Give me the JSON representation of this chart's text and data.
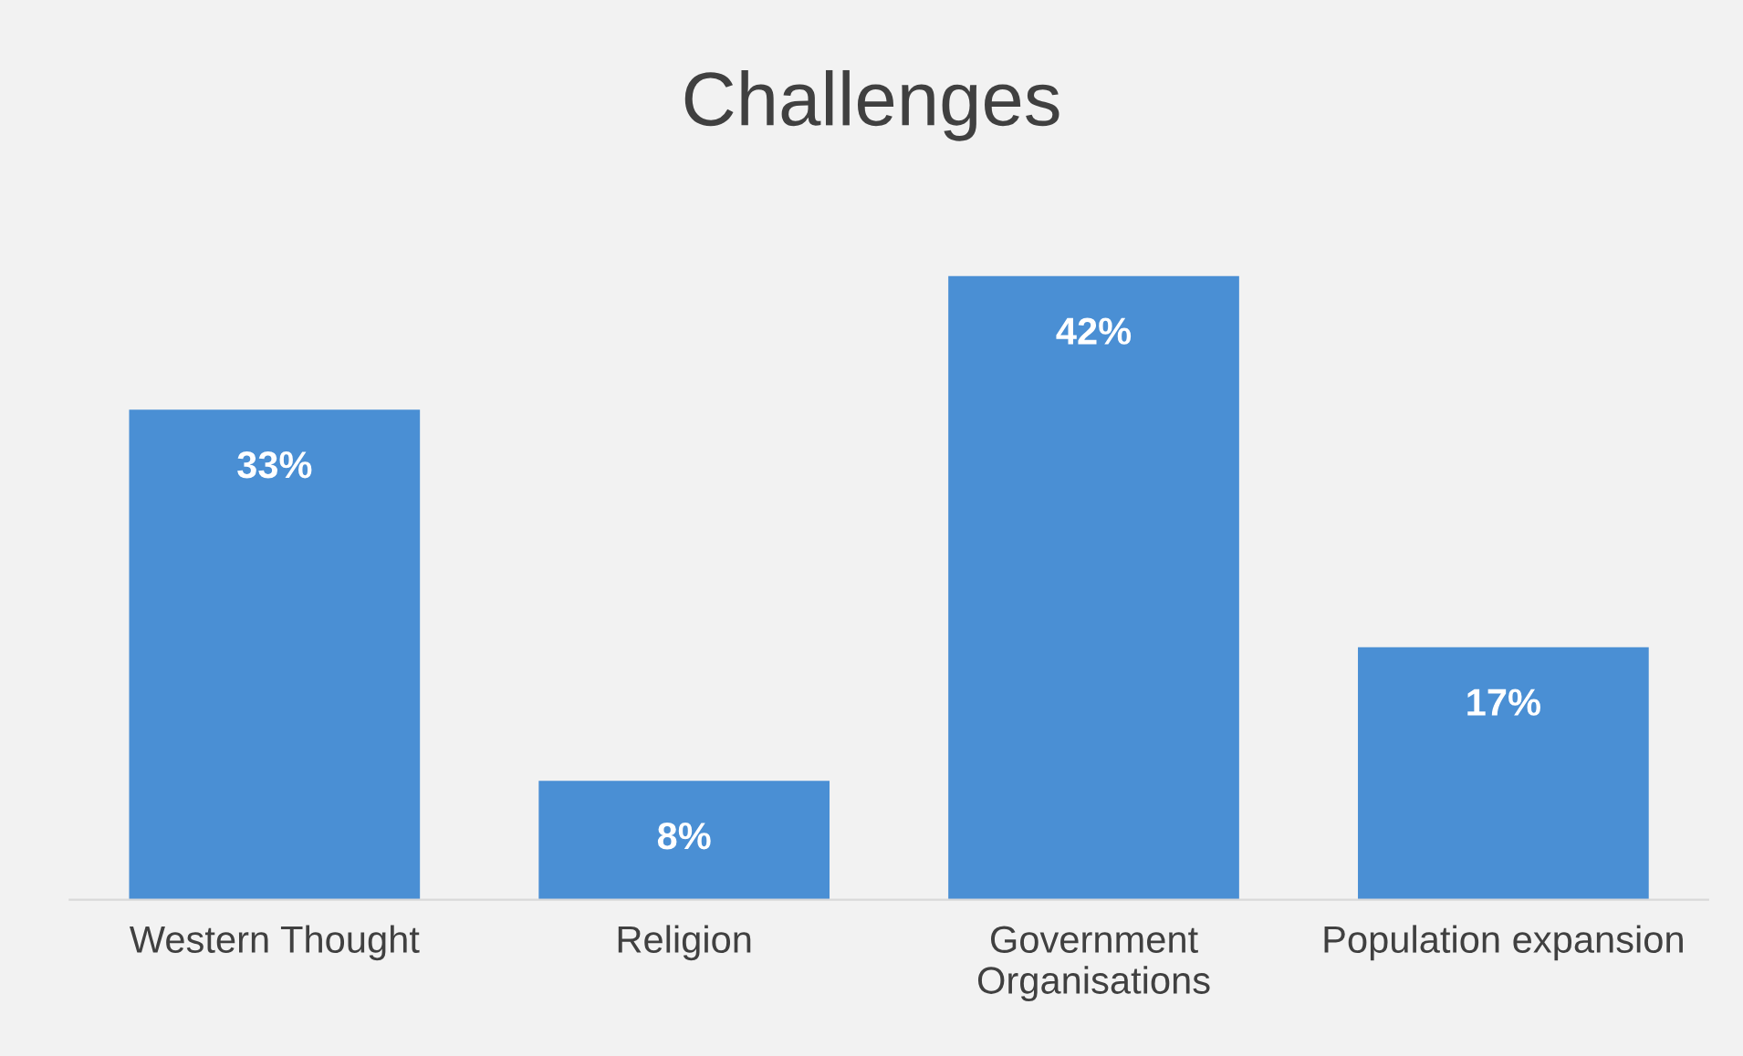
{
  "chart_data": {
    "type": "bar",
    "title": "Challenges",
    "categories": [
      "Western Thought",
      "Religion",
      "Government\nOrganisations",
      "Population expansion"
    ],
    "values": [
      33,
      8,
      42,
      17
    ],
    "value_labels": [
      "33%",
      "8%",
      "42%",
      "17%"
    ],
    "color": "#4a8fd4",
    "grid": false,
    "legend": false
  }
}
